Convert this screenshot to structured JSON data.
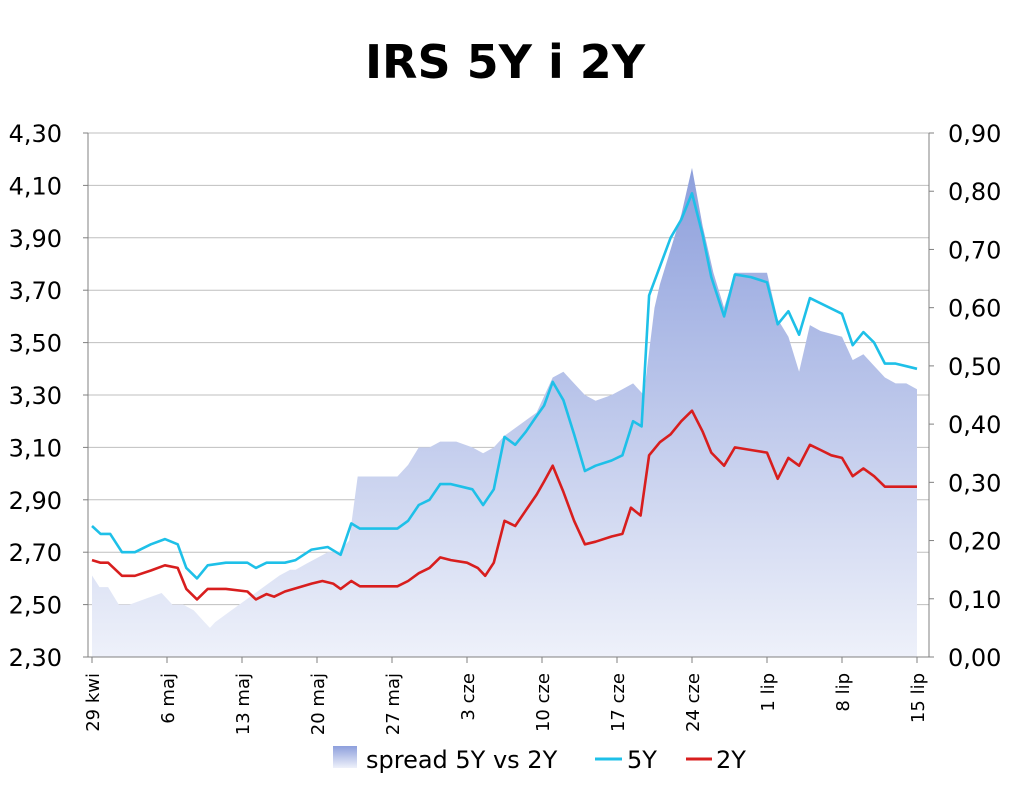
{
  "chart_data": {
    "type": "line",
    "title": "IRS 5Y i 2Y",
    "left_axis": {
      "ylim": [
        2.3,
        4.3
      ],
      "ticks": [
        "2,30",
        "2,50",
        "2,70",
        "2,90",
        "3,10",
        "3,30",
        "3,50",
        "3,70",
        "3,90",
        "4,10",
        "4,30"
      ]
    },
    "right_axis": {
      "ylim": [
        0.0,
        0.9
      ],
      "ticks": [
        "0,00",
        "0,10",
        "0,20",
        "0,30",
        "0,40",
        "0,50",
        "0,60",
        "0,70",
        "0,80",
        "0,90"
      ]
    },
    "x_range": [
      0,
      77
    ],
    "x_ticks": [
      {
        "x": 0,
        "label": "29 kwi"
      },
      {
        "x": 7,
        "label": "6 maj"
      },
      {
        "x": 14,
        "label": "13 maj"
      },
      {
        "x": 21,
        "label": "20 maj"
      },
      {
        "x": 28,
        "label": "27 maj"
      },
      {
        "x": 35,
        "label": "3 cze"
      },
      {
        "x": 42,
        "label": "10 cze"
      },
      {
        "x": 49,
        "label": "17 cze"
      },
      {
        "x": 56,
        "label": "24 cze"
      },
      {
        "x": 63,
        "label": "1 lip"
      },
      {
        "x": 70,
        "label": "8 lip"
      },
      {
        "x": 77,
        "label": "15 lip"
      }
    ],
    "grid": true,
    "legend_position": "bottom",
    "colors": {
      "spread": "#9eb0e0",
      "y5": "#1ec0e8",
      "y2": "#d81e1e",
      "grid": "#bfbfbf",
      "axis": "#808080"
    },
    "series": [
      {
        "name": "spread 5Y vs 2Y",
        "axis": "right",
        "kind": "area",
        "points": [
          [
            0,
            0.14
          ],
          [
            0.7,
            0.12
          ],
          [
            1.5,
            0.12
          ],
          [
            2.5,
            0.09
          ],
          [
            3.5,
            0.09
          ],
          [
            5,
            0.1
          ],
          [
            6.5,
            0.11
          ],
          [
            7.5,
            0.09
          ],
          [
            8.5,
            0.09
          ],
          [
            9.5,
            0.08
          ],
          [
            10.5,
            0.06
          ],
          [
            11,
            0.05
          ],
          [
            11.5,
            0.06
          ],
          [
            13,
            0.08
          ],
          [
            14.5,
            0.1
          ],
          [
            16,
            0.12
          ],
          [
            17.5,
            0.14
          ],
          [
            18.5,
            0.15
          ],
          [
            19,
            0.15
          ],
          [
            20,
            0.16
          ],
          [
            21,
            0.17
          ],
          [
            22,
            0.18
          ],
          [
            23,
            0.18
          ],
          [
            24,
            0.2
          ],
          [
            24.8,
            0.31
          ],
          [
            26,
            0.31
          ],
          [
            27.5,
            0.31
          ],
          [
            28.5,
            0.31
          ],
          [
            29.5,
            0.33
          ],
          [
            30.5,
            0.36
          ],
          [
            31.5,
            0.36
          ],
          [
            32.5,
            0.37
          ],
          [
            34,
            0.37
          ],
          [
            35.5,
            0.36
          ],
          [
            36.5,
            0.35
          ],
          [
            37.5,
            0.36
          ],
          [
            38.5,
            0.38
          ],
          [
            40,
            0.4
          ],
          [
            41.5,
            0.42
          ],
          [
            42,
            0.44
          ],
          [
            43,
            0.48
          ],
          [
            44,
            0.49
          ],
          [
            45,
            0.47
          ],
          [
            46,
            0.45
          ],
          [
            47,
            0.44
          ],
          [
            48.5,
            0.45
          ],
          [
            49.5,
            0.46
          ],
          [
            50.5,
            0.47
          ],
          [
            51.5,
            0.45
          ],
          [
            52.5,
            0.6
          ],
          [
            53,
            0.64
          ],
          [
            54,
            0.7
          ],
          [
            55,
            0.76
          ],
          [
            56,
            0.84
          ],
          [
            57,
            0.74
          ],
          [
            58,
            0.66
          ],
          [
            59,
            0.6
          ],
          [
            60,
            0.66
          ],
          [
            61.5,
            0.66
          ],
          [
            63,
            0.66
          ],
          [
            64,
            0.58
          ],
          [
            65,
            0.55
          ],
          [
            66,
            0.49
          ],
          [
            67,
            0.57
          ],
          [
            68,
            0.56
          ],
          [
            70,
            0.55
          ],
          [
            71,
            0.51
          ],
          [
            72,
            0.52
          ],
          [
            73,
            0.5
          ],
          [
            74,
            0.48
          ],
          [
            75,
            0.47
          ],
          [
            76,
            0.47
          ],
          [
            77,
            0.46
          ]
        ]
      },
      {
        "name": "5Y",
        "axis": "left",
        "kind": "line",
        "points": [
          [
            0,
            2.8
          ],
          [
            0.8,
            2.77
          ],
          [
            1.7,
            2.77
          ],
          [
            2.8,
            2.7
          ],
          [
            4,
            2.7
          ],
          [
            5.5,
            2.73
          ],
          [
            6.8,
            2.75
          ],
          [
            8,
            2.73
          ],
          [
            8.8,
            2.64
          ],
          [
            9.8,
            2.6
          ],
          [
            10.8,
            2.65
          ],
          [
            12.5,
            2.66
          ],
          [
            14.5,
            2.66
          ],
          [
            15.3,
            2.64
          ],
          [
            16.3,
            2.66
          ],
          [
            18,
            2.66
          ],
          [
            19,
            2.67
          ],
          [
            20.5,
            2.71
          ],
          [
            22,
            2.72
          ],
          [
            23.2,
            2.69
          ],
          [
            24.2,
            2.81
          ],
          [
            25,
            2.79
          ],
          [
            26,
            2.79
          ],
          [
            27.5,
            2.79
          ],
          [
            28.5,
            2.79
          ],
          [
            29.5,
            2.82
          ],
          [
            30.5,
            2.88
          ],
          [
            31.5,
            2.9
          ],
          [
            32.5,
            2.96
          ],
          [
            33.5,
            2.96
          ],
          [
            34.5,
            2.95
          ],
          [
            35.5,
            2.94
          ],
          [
            36.5,
            2.88
          ],
          [
            37.5,
            2.94
          ],
          [
            38.5,
            3.14
          ],
          [
            39.5,
            3.11
          ],
          [
            40.5,
            3.16
          ],
          [
            41.5,
            3.22
          ],
          [
            42.2,
            3.26
          ],
          [
            43,
            3.35
          ],
          [
            44,
            3.28
          ],
          [
            45,
            3.15
          ],
          [
            46,
            3.01
          ],
          [
            47,
            3.03
          ],
          [
            48.5,
            3.05
          ],
          [
            49.5,
            3.07
          ],
          [
            50.5,
            3.2
          ],
          [
            51.3,
            3.18
          ],
          [
            52,
            3.68
          ],
          [
            53,
            3.79
          ],
          [
            54,
            3.9
          ],
          [
            55,
            3.97
          ],
          [
            56,
            4.07
          ],
          [
            57,
            3.91
          ],
          [
            57.8,
            3.75
          ],
          [
            59,
            3.6
          ],
          [
            60,
            3.76
          ],
          [
            61.5,
            3.75
          ],
          [
            63,
            3.73
          ],
          [
            64,
            3.57
          ],
          [
            65,
            3.62
          ],
          [
            66,
            3.53
          ],
          [
            67,
            3.67
          ],
          [
            68,
            3.65
          ],
          [
            70,
            3.61
          ],
          [
            71,
            3.49
          ],
          [
            72,
            3.54
          ],
          [
            73,
            3.5
          ],
          [
            74,
            3.42
          ],
          [
            75,
            3.42
          ],
          [
            76,
            3.41
          ],
          [
            77,
            3.4
          ]
        ]
      },
      {
        "name": "2Y",
        "axis": "left",
        "kind": "line",
        "points": [
          [
            0,
            2.67
          ],
          [
            0.8,
            2.66
          ],
          [
            1.5,
            2.66
          ],
          [
            2.8,
            2.61
          ],
          [
            4,
            2.61
          ],
          [
            5.5,
            2.63
          ],
          [
            6.8,
            2.65
          ],
          [
            8,
            2.64
          ],
          [
            8.8,
            2.56
          ],
          [
            9.8,
            2.52
          ],
          [
            10.8,
            2.56
          ],
          [
            12.5,
            2.56
          ],
          [
            14.5,
            2.55
          ],
          [
            15.3,
            2.52
          ],
          [
            16.3,
            2.54
          ],
          [
            17,
            2.53
          ],
          [
            18,
            2.55
          ],
          [
            20.5,
            2.58
          ],
          [
            21.5,
            2.59
          ],
          [
            22.5,
            2.58
          ],
          [
            23.2,
            2.56
          ],
          [
            24.2,
            2.59
          ],
          [
            25,
            2.57
          ],
          [
            27.5,
            2.57
          ],
          [
            28.5,
            2.57
          ],
          [
            29.5,
            2.59
          ],
          [
            30.5,
            2.62
          ],
          [
            31.5,
            2.64
          ],
          [
            32.5,
            2.68
          ],
          [
            33.5,
            2.67
          ],
          [
            35,
            2.66
          ],
          [
            36,
            2.64
          ],
          [
            36.7,
            2.61
          ],
          [
            37.5,
            2.66
          ],
          [
            38.5,
            2.82
          ],
          [
            39.5,
            2.8
          ],
          [
            40.5,
            2.86
          ],
          [
            41.5,
            2.92
          ],
          [
            42.2,
            2.97
          ],
          [
            43,
            3.03
          ],
          [
            44,
            2.93
          ],
          [
            45,
            2.82
          ],
          [
            46,
            2.73
          ],
          [
            47,
            2.74
          ],
          [
            48.5,
            2.76
          ],
          [
            49.5,
            2.77
          ],
          [
            50.3,
            2.87
          ],
          [
            51.2,
            2.84
          ],
          [
            52,
            3.07
          ],
          [
            53,
            3.12
          ],
          [
            54,
            3.15
          ],
          [
            55,
            3.2
          ],
          [
            56,
            3.24
          ],
          [
            57,
            3.16
          ],
          [
            57.8,
            3.08
          ],
          [
            59,
            3.03
          ],
          [
            60,
            3.1
          ],
          [
            61.5,
            3.09
          ],
          [
            63,
            3.08
          ],
          [
            64,
            2.98
          ],
          [
            65,
            3.06
          ],
          [
            66,
            3.03
          ],
          [
            67,
            3.11
          ],
          [
            68,
            3.09
          ],
          [
            69,
            3.07
          ],
          [
            70,
            3.06
          ],
          [
            71,
            2.99
          ],
          [
            72,
            3.02
          ],
          [
            73,
            2.99
          ],
          [
            74,
            2.95
          ],
          [
            75,
            2.95
          ],
          [
            76,
            2.95
          ],
          [
            77,
            2.95
          ]
        ]
      }
    ]
  }
}
